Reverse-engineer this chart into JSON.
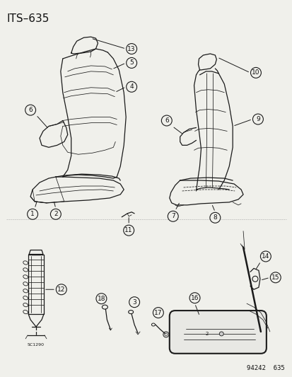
{
  "title": "ITS–635",
  "watermark": "94242  635",
  "bg_color": "#f0f0eb",
  "line_color": "#1a1a1a",
  "label_color": "#111111",
  "title_fontsize": 11,
  "label_fontsize": 7,
  "watermark_fontsize": 6.5
}
